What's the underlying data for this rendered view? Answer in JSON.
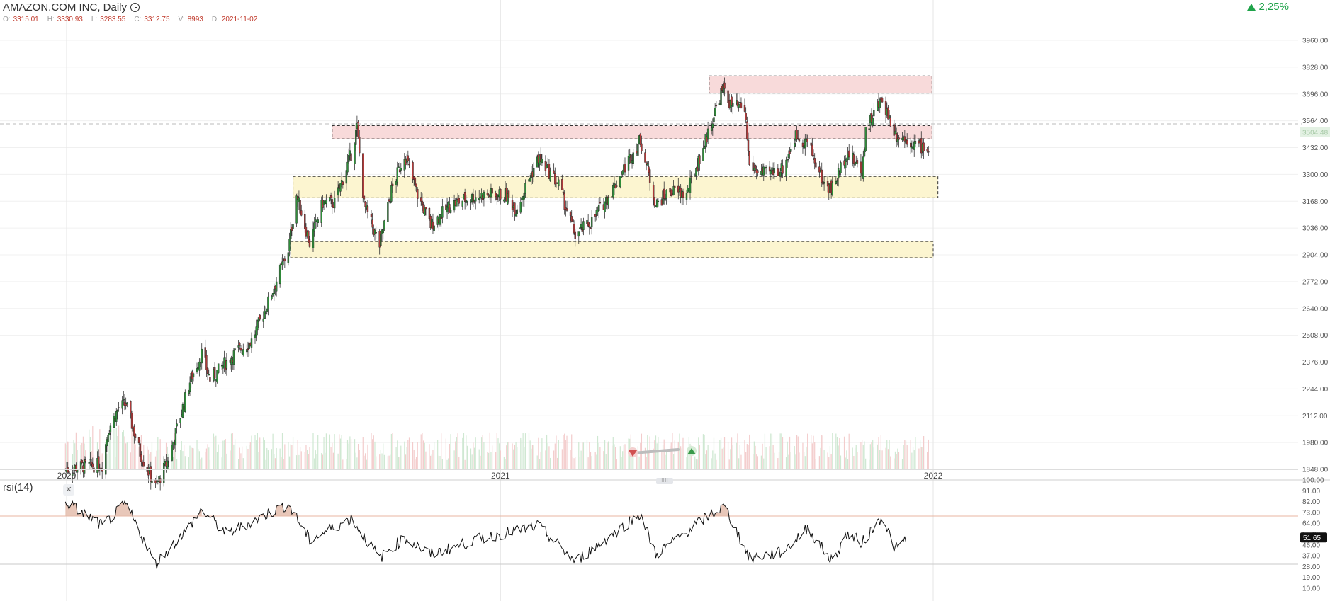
{
  "header": {
    "title": "AMAZON.COM INC, Daily",
    "ohlc": [
      {
        "label": "O:",
        "value": "3315.01"
      },
      {
        "label": "H:",
        "value": "3330.93"
      },
      {
        "label": "L:",
        "value": "3283.55"
      },
      {
        "label": "C:",
        "value": "3312.75"
      },
      {
        "label": "V:",
        "value": "8993"
      },
      {
        "label": "D:",
        "value": "2021-11-02"
      }
    ],
    "change": "2,25%"
  },
  "colors": {
    "up": "#2f8f3a",
    "down": "#b03a3a",
    "resistance_fill": "#f7d3d3",
    "support_fill": "#fbf3c8",
    "positive": "#1fa34a"
  },
  "chart_data": [
    {
      "type": "candlestick",
      "title": "AMAZON.COM INC, Daily",
      "y_ticks": [
        "3960.00",
        "3828.00",
        "3696.00",
        "3564.00",
        "3432.00",
        "3300.00",
        "3168.00",
        "3036.00",
        "2904.00",
        "2772.00",
        "2640.00",
        "2508.00",
        "2376.00",
        "2244.00",
        "2112.00",
        "1980.00",
        "1848.00"
      ],
      "x_ticks": [
        "2020",
        "2021",
        "2022"
      ],
      "ylim": [
        1805,
        3990
      ],
      "current_price_label": "3504.48",
      "grid": true,
      "zones": [
        {
          "kind": "resistance",
          "start": "2021-06-26",
          "end": "2021-12-31",
          "low": 3700,
          "high": 3785
        },
        {
          "kind": "resistance",
          "start": "2020-08-12",
          "end": "2021-12-31",
          "low": 3475,
          "high": 3540
        },
        {
          "kind": "support",
          "start": "2020-07-10",
          "end": "2022-01-05",
          "low": 3185,
          "high": 3290
        },
        {
          "kind": "support",
          "start": "2020-07-08",
          "end": "2022-01-01",
          "low": 2890,
          "high": 2970
        }
      ],
      "price_path": [
        [
          "2019-12-31",
          1847
        ],
        [
          "2020-01-17",
          1865
        ],
        [
          "2020-01-31",
          1870
        ],
        [
          "2020-02-05",
          2040
        ],
        [
          "2020-02-14",
          2150
        ],
        [
          "2020-02-20",
          2170
        ],
        [
          "2020-03-03",
          1930
        ],
        [
          "2020-03-16",
          1760
        ],
        [
          "2020-03-27",
          1900
        ],
        [
          "2020-04-14",
          2280
        ],
        [
          "2020-04-24",
          2420
        ],
        [
          "2020-05-01",
          2290
        ],
        [
          "2020-05-22",
          2420
        ],
        [
          "2020-06-05",
          2480
        ],
        [
          "2020-06-19",
          2670
        ],
        [
          "2020-07-06",
          2930
        ],
        [
          "2020-07-13",
          3200
        ],
        [
          "2020-07-24",
          2960
        ],
        [
          "2020-08-04",
          3160
        ],
        [
          "2020-08-14",
          3160
        ],
        [
          "2020-08-28",
          3400
        ],
        [
          "2020-09-02",
          3530
        ],
        [
          "2020-09-08",
          3150
        ],
        [
          "2020-09-21",
          2950
        ],
        [
          "2020-10-01",
          3220
        ],
        [
          "2020-10-12",
          3400
        ],
        [
          "2020-10-23",
          3200
        ],
        [
          "2020-11-03",
          3050
        ],
        [
          "2020-11-20",
          3150
        ],
        [
          "2020-12-03",
          3180
        ],
        [
          "2020-12-18",
          3200
        ],
        [
          "2021-01-05",
          3200
        ],
        [
          "2021-01-14",
          3130
        ],
        [
          "2021-02-02",
          3380
        ],
        [
          "2021-02-19",
          3250
        ],
        [
          "2021-03-05",
          3000
        ],
        [
          "2021-03-19",
          3070
        ],
        [
          "2021-04-06",
          3230
        ],
        [
          "2021-04-19",
          3370
        ],
        [
          "2021-04-29",
          3470
        ],
        [
          "2021-05-12",
          3150
        ],
        [
          "2021-05-24",
          3220
        ],
        [
          "2021-06-07",
          3200
        ],
        [
          "2021-06-22",
          3450
        ],
        [
          "2021-07-06",
          3700
        ],
        [
          "2021-07-09",
          3720
        ],
        [
          "2021-07-14",
          3640
        ],
        [
          "2021-07-26",
          3620
        ],
        [
          "2021-07-30",
          3340
        ],
        [
          "2021-08-12",
          3300
        ],
        [
          "2021-08-27",
          3330
        ],
        [
          "2021-09-07",
          3490
        ],
        [
          "2021-09-17",
          3460
        ],
        [
          "2021-10-01",
          3250
        ],
        [
          "2021-10-08",
          3230
        ],
        [
          "2021-10-20",
          3410
        ],
        [
          "2021-11-02",
          3312.75
        ],
        [
          "2021-11-05",
          3520
        ],
        [
          "2021-11-12",
          3600
        ],
        [
          "2021-11-19",
          3670
        ],
        [
          "2021-11-30",
          3500
        ],
        [
          "2021-12-10",
          3470
        ],
        [
          "2021-12-29",
          3420
        ]
      ]
    },
    {
      "type": "line",
      "title": "rsi(14)",
      "y_ticks": [
        "100.00",
        "91.00",
        "82.00",
        "73.00",
        "64.00",
        "55.00",
        "46.00",
        "37.00",
        "28.00",
        "19.00",
        "10.00"
      ],
      "ylim": [
        10,
        100
      ],
      "reference_lines": [
        70,
        30
      ],
      "current_value": "51.65",
      "series": [
        {
          "values": [
            [
              "2019-12-31",
              82
            ],
            [
              "2020-01-31",
              62
            ],
            [
              "2020-02-20",
              80
            ],
            [
              "2020-03-16",
              30
            ],
            [
              "2020-04-14",
              62
            ],
            [
              "2020-04-24",
              75
            ],
            [
              "2020-05-15",
              55
            ],
            [
              "2020-06-05",
              65
            ],
            [
              "2020-07-06",
              80
            ],
            [
              "2020-07-24",
              50
            ],
            [
              "2020-08-28",
              68
            ],
            [
              "2020-09-21",
              35
            ],
            [
              "2020-10-12",
              52
            ],
            [
              "2020-11-03",
              38
            ],
            [
              "2020-12-18",
              52
            ],
            [
              "2021-02-02",
              62
            ],
            [
              "2021-03-05",
              32
            ],
            [
              "2021-04-29",
              72
            ],
            [
              "2021-05-12",
              38
            ],
            [
              "2021-06-22",
              68
            ],
            [
              "2021-07-09",
              78
            ],
            [
              "2021-07-30",
              35
            ],
            [
              "2021-08-27",
              40
            ],
            [
              "2021-09-17",
              60
            ],
            [
              "2021-10-08",
              32
            ],
            [
              "2021-10-20",
              55
            ],
            [
              "2021-11-02",
              48
            ],
            [
              "2021-11-19",
              70
            ],
            [
              "2021-11-30",
              42
            ],
            [
              "2021-12-10",
              51.65
            ]
          ]
        }
      ]
    }
  ]
}
